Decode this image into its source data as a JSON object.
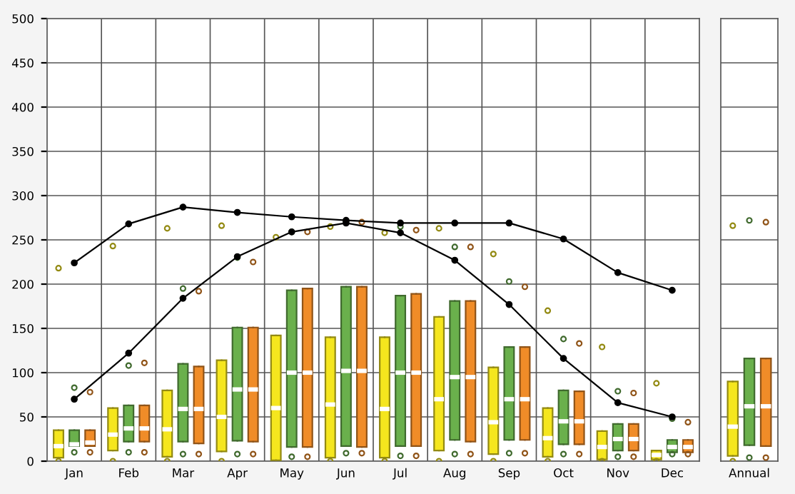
{
  "chart_data": [
    {
      "type": "box",
      "categories": [
        "Jan",
        "Feb",
        "Mar",
        "Apr",
        "May",
        "Jun",
        "Jul",
        "Aug",
        "Sep",
        "Oct",
        "Nov",
        "Dec"
      ],
      "ylim": [
        0,
        500
      ],
      "yticks": [
        0,
        50,
        100,
        150,
        200,
        250,
        300,
        350,
        400,
        450,
        500
      ],
      "grid": true,
      "legend": false,
      "series": [
        {
          "color": "#f5e61e",
          "boxes": [
            {
              "low": 4,
              "q1": 4,
              "median": 17,
              "q3": 35,
              "high": 35,
              "outliers": [
                0,
                218
              ]
            },
            {
              "low": 12,
              "q1": 12,
              "median": 30,
              "q3": 60,
              "high": 60,
              "outliers": [
                0,
                243
              ]
            },
            {
              "low": 5,
              "q1": 5,
              "median": 36,
              "q3": 80,
              "high": 80,
              "outliers": [
                0,
                263
              ]
            },
            {
              "low": 11,
              "q1": 11,
              "median": 50,
              "q3": 114,
              "high": 114,
              "outliers": [
                0,
                266
              ]
            },
            {
              "low": 1,
              "q1": 1,
              "median": 60,
              "q3": 142,
              "high": 142,
              "outliers": [
                253
              ]
            },
            {
              "low": 4,
              "q1": 4,
              "median": 64,
              "q3": 140,
              "high": 140,
              "outliers": [
                0,
                265
              ]
            },
            {
              "low": 4,
              "q1": 4,
              "median": 59,
              "q3": 140,
              "high": 140,
              "outliers": [
                0,
                258
              ]
            },
            {
              "low": 12,
              "q1": 12,
              "median": 70,
              "q3": 163,
              "high": 163,
              "outliers": [
                0,
                263
              ]
            },
            {
              "low": 8,
              "q1": 8,
              "median": 44,
              "q3": 106,
              "high": 106,
              "outliers": [
                0,
                234
              ]
            },
            {
              "low": 5,
              "q1": 5,
              "median": 26,
              "q3": 60,
              "high": 60,
              "outliers": [
                0,
                170
              ]
            },
            {
              "low": 2,
              "q1": 2,
              "median": 16,
              "q3": 34,
              "high": 34,
              "outliers": [
                0,
                129
              ]
            },
            {
              "low": 2,
              "q1": 2,
              "median": 7,
              "q3": 12,
              "high": 12,
              "outliers": [
                0,
                88
              ]
            }
          ]
        },
        {
          "color": "#6ab04c",
          "boxes": [
            {
              "low": 17,
              "q1": 17,
              "median": 19,
              "q3": 35,
              "high": 35,
              "outliers": [
                10,
                83
              ]
            },
            {
              "low": 22,
              "q1": 22,
              "median": 37,
              "q3": 63,
              "high": 63,
              "outliers": [
                10,
                108
              ]
            },
            {
              "low": 22,
              "q1": 22,
              "median": 59,
              "q3": 110,
              "high": 110,
              "outliers": [
                8,
                195
              ]
            },
            {
              "low": 23,
              "q1": 23,
              "median": 81,
              "q3": 151,
              "high": 151,
              "outliers": [
                8,
                230
              ]
            },
            {
              "low": 16,
              "q1": 16,
              "median": 100,
              "q3": 193,
              "high": 193,
              "outliers": [
                5,
                259
              ]
            },
            {
              "low": 17,
              "q1": 17,
              "median": 102,
              "q3": 197,
              "high": 197,
              "outliers": [
                9,
                271
              ]
            },
            {
              "low": 17,
              "q1": 17,
              "median": 100,
              "q3": 187,
              "high": 187,
              "outliers": [
                6,
                265
              ]
            },
            {
              "low": 24,
              "q1": 24,
              "median": 95,
              "q3": 181,
              "high": 181,
              "outliers": [
                8,
                242
              ]
            },
            {
              "low": 24,
              "q1": 24,
              "median": 70,
              "q3": 129,
              "high": 129,
              "outliers": [
                9,
                203
              ]
            },
            {
              "low": 19,
              "q1": 19,
              "median": 45,
              "q3": 80,
              "high": 80,
              "outliers": [
                8,
                138
              ]
            },
            {
              "low": 12,
              "q1": 12,
              "median": 25,
              "q3": 42,
              "high": 42,
              "outliers": [
                5,
                79
              ]
            },
            {
              "low": 10,
              "q1": 10,
              "median": 16,
              "q3": 24,
              "high": 24,
              "outliers": [
                8,
                48
              ]
            }
          ]
        },
        {
          "color": "#f08c28",
          "boxes": [
            {
              "low": 17,
              "q1": 17,
              "median": 21,
              "q3": 35,
              "high": 35,
              "outliers": [
                10,
                78
              ]
            },
            {
              "low": 22,
              "q1": 22,
              "median": 37,
              "q3": 63,
              "high": 63,
              "outliers": [
                10,
                111
              ]
            },
            {
              "low": 20,
              "q1": 20,
              "median": 59,
              "q3": 107,
              "high": 107,
              "outliers": [
                8,
                192
              ]
            },
            {
              "low": 22,
              "q1": 22,
              "median": 81,
              "q3": 151,
              "high": 151,
              "outliers": [
                8,
                225
              ]
            },
            {
              "low": 16,
              "q1": 16,
              "median": 100,
              "q3": 195,
              "high": 195,
              "outliers": [
                5,
                259
              ]
            },
            {
              "low": 16,
              "q1": 16,
              "median": 102,
              "q3": 197,
              "high": 197,
              "outliers": [
                9,
                270
              ]
            },
            {
              "low": 17,
              "q1": 17,
              "median": 100,
              "q3": 189,
              "high": 189,
              "outliers": [
                6,
                261
              ]
            },
            {
              "low": 22,
              "q1": 22,
              "median": 95,
              "q3": 181,
              "high": 181,
              "outliers": [
                8,
                242
              ]
            },
            {
              "low": 24,
              "q1": 24,
              "median": 70,
              "q3": 129,
              "high": 129,
              "outliers": [
                9,
                197
              ]
            },
            {
              "low": 19,
              "q1": 19,
              "median": 45,
              "q3": 79,
              "high": 79,
              "outliers": [
                8,
                133
              ]
            },
            {
              "low": 12,
              "q1": 12,
              "median": 25,
              "q3": 42,
              "high": 42,
              "outliers": [
                5,
                77
              ]
            },
            {
              "low": 10,
              "q1": 10,
              "median": 16,
              "q3": 24,
              "high": 24,
              "outliers": [
                8,
                44
              ]
            }
          ]
        },
        {
          "type": "line",
          "color": "#000000",
          "marker": "circle",
          "values": [
            224,
            268,
            287,
            281,
            276,
            272,
            269,
            269,
            269,
            251,
            213,
            193
          ]
        },
        {
          "type": "line",
          "color": "#000000",
          "marker": "circle",
          "values": [
            70,
            122,
            184,
            231,
            259,
            269,
            258,
            227,
            177,
            116,
            66,
            50
          ]
        }
      ]
    },
    {
      "type": "box",
      "categories": [
        "Annual"
      ],
      "ylim": [
        0,
        500
      ],
      "yticks": [
        0,
        50,
        100,
        150,
        200,
        250,
        300,
        350,
        400,
        450,
        500
      ],
      "grid": true,
      "legend": false,
      "tick_labels": "x",
      "series": [
        {
          "color": "#f5e61e",
          "boxes": [
            {
              "low": 6,
              "q1": 6,
              "median": 39,
              "q3": 90,
              "high": 90,
              "outliers": [
                0,
                266
              ]
            }
          ]
        },
        {
          "color": "#6ab04c",
          "boxes": [
            {
              "low": 18,
              "q1": 18,
              "median": 62,
              "q3": 116,
              "high": 116,
              "outliers": [
                4,
                272
              ]
            }
          ]
        },
        {
          "color": "#f08c28",
          "boxes": [
            {
              "low": 17,
              "q1": 17,
              "median": 62,
              "q3": 116,
              "high": 116,
              "outliers": [
                4,
                270
              ]
            }
          ]
        }
      ]
    }
  ]
}
